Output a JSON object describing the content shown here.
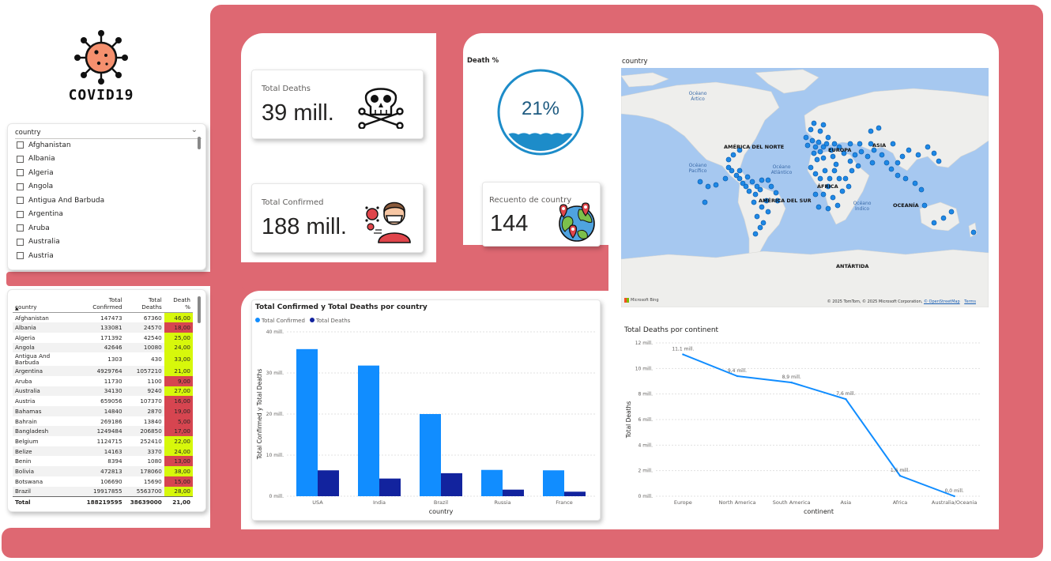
{
  "logo": {
    "title": "COVID19"
  },
  "colors": {
    "frame": "#de6872",
    "primary": "#118dff",
    "secondary": "#12239e",
    "good": "#d7f80b",
    "bad": "#d64550"
  },
  "slicer": {
    "label": "country",
    "items": [
      "Afghanistan",
      "Albania",
      "Algeria",
      "Angola",
      "Antigua And Barbuda",
      "Argentina",
      "Aruba",
      "Australia",
      "Austria"
    ]
  },
  "table": {
    "headers": [
      "country",
      "Total Confirmed",
      "Total Deaths",
      "Death %"
    ],
    "rows": [
      [
        "Afghanistan",
        "147473",
        "67360",
        "46,00"
      ],
      [
        "Albania",
        "133081",
        "24570",
        "18,00"
      ],
      [
        "Algeria",
        "171392",
        "42540",
        "25,00"
      ],
      [
        "Angola",
        "42646",
        "10080",
        "24,00"
      ],
      [
        "Antigua And Barbuda",
        "1303",
        "430",
        "33,00"
      ],
      [
        "Argentina",
        "4929764",
        "1057210",
        "21,00"
      ],
      [
        "Aruba",
        "11730",
        "1100",
        "9,00"
      ],
      [
        "Australia",
        "34130",
        "9240",
        "27,00"
      ],
      [
        "Austria",
        "659056",
        "107370",
        "16,00"
      ],
      [
        "Bahamas",
        "14840",
        "2870",
        "19,00"
      ],
      [
        "Bahrain",
        "269186",
        "13840",
        "5,00"
      ],
      [
        "Bangladesh",
        "1249484",
        "206850",
        "17,00"
      ],
      [
        "Belgium",
        "1124715",
        "252410",
        "22,00"
      ],
      [
        "Belize",
        "14163",
        "3370",
        "24,00"
      ],
      [
        "Benin",
        "8394",
        "1080",
        "13,00"
      ],
      [
        "Bolivia",
        "472813",
        "178060",
        "38,00"
      ],
      [
        "Botswana",
        "106690",
        "15690",
        "15,00"
      ],
      [
        "Brazil",
        "19917855",
        "5563700",
        "28,00"
      ]
    ],
    "total": [
      "Total",
      "188219595",
      "38639000",
      "21,00"
    ]
  },
  "kpis": {
    "deaths": {
      "label": "Total Deaths",
      "value": "39 mill."
    },
    "confirmed": {
      "label": "Total Confirmed",
      "value": "188 mill."
    },
    "countries": {
      "label": "Recuento de country",
      "value": "144"
    }
  },
  "gauge": {
    "label": "Death %",
    "value": "21%",
    "fill": 0.21
  },
  "map": {
    "label": "country",
    "continents": [
      "AMÉRICA DEL NORTE",
      "EUROPA",
      "ASIA",
      "ÁFRICA",
      "AMÉRICA DEL SUR",
      "OCEANÍA",
      "ANTÁRTIDA"
    ],
    "oceans": [
      "Océano Ártico",
      "Océano Pacífico",
      "Océano Atlántico",
      "Océano Índico"
    ],
    "attribution": "© 2025 TomTom, © 2025 Microsoft Corporation,",
    "osm": "© OpenStreetMap",
    "terms": "Terms",
    "brand": "Microsoft Bing"
  },
  "chart_data": [
    {
      "type": "bar",
      "title": "Total Confirmed y Total Deaths por country",
      "categories": [
        "USA",
        "India",
        "Brazil",
        "Russia",
        "France"
      ],
      "series": [
        {
          "name": "Total Confirmed",
          "values": [
            35.8,
            31.8,
            20.0,
            6.4,
            6.3
          ]
        },
        {
          "name": "Total Deaths",
          "values": [
            6.3,
            4.3,
            5.6,
            1.6,
            1.1
          ]
        }
      ],
      "xlabel": "country",
      "ylabel": "Total Confirmed y Total Deaths",
      "ylim": [
        0,
        40
      ],
      "yticks": [
        "0 mill.",
        "10 mill.",
        "20 mill.",
        "30 mill.",
        "40 mill."
      ]
    },
    {
      "type": "line",
      "title": "Total Deaths por continent",
      "categories": [
        "Europe",
        "North America",
        "South America",
        "Asia",
        "Africa",
        "Australia/Oceania"
      ],
      "values": [
        11.1,
        9.4,
        8.9,
        7.6,
        1.6,
        0.0
      ],
      "data_labels": [
        "11,1 mill.",
        "9,4 mill.",
        "8,9 mill.",
        "7,6 mill.",
        "1,6 mill.",
        "0,0 mill."
      ],
      "xlabel": "continent",
      "ylabel": "Total Deaths",
      "ylim": [
        0,
        12
      ],
      "yticks": [
        "0 mill.",
        "2 mill.",
        "4 mill.",
        "6 mill.",
        "8 mill.",
        "10 mill.",
        "12 mill."
      ]
    }
  ]
}
